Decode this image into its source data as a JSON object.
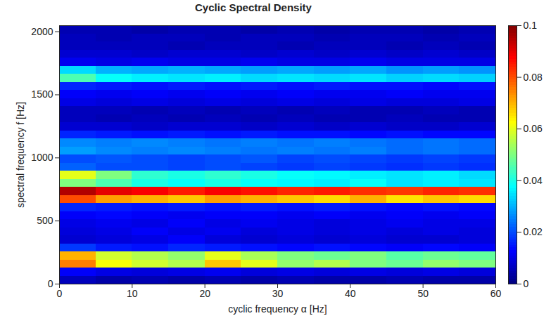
{
  "chart_data": {
    "type": "heatmap",
    "title": "Cyclic Spectral Density",
    "xlabel": "cyclic frequency α [Hz]",
    "ylabel": "spectral frequency f [Hz]",
    "xlim": [
      0,
      60
    ],
    "xticks": [
      0,
      10,
      20,
      30,
      40,
      50,
      60
    ],
    "ylim": [
      0,
      2048
    ],
    "yticks": [
      0,
      500,
      1000,
      1500,
      2000
    ],
    "xbins": [
      0,
      5,
      10,
      15,
      20,
      25,
      30,
      35,
      40,
      45,
      50,
      55,
      60
    ],
    "ybins": [
      0,
      64,
      128,
      192,
      256,
      320,
      384,
      448,
      512,
      576,
      640,
      704,
      768,
      832,
      896,
      960,
      1024,
      1088,
      1152,
      1216,
      1280,
      1344,
      1408,
      1472,
      1536,
      1600,
      1664,
      1728,
      1792,
      1856,
      1920,
      1984,
      2048
    ],
    "values": [
      [
        0.006,
        0.004,
        0.005,
        0.004,
        0.005,
        0.004,
        0.005,
        0.004,
        0.004,
        0.005,
        0.004,
        0.004
      ],
      [
        0.012,
        0.01,
        0.009,
        0.01,
        0.011,
        0.009,
        0.01,
        0.009,
        0.01,
        0.009,
        0.01,
        0.009
      ],
      [
        0.075,
        0.062,
        0.058,
        0.055,
        0.068,
        0.06,
        0.052,
        0.055,
        0.05,
        0.048,
        0.052,
        0.05
      ],
      [
        0.07,
        0.058,
        0.055,
        0.052,
        0.06,
        0.054,
        0.05,
        0.048,
        0.05,
        0.046,
        0.048,
        0.047
      ],
      [
        0.018,
        0.015,
        0.014,
        0.016,
        0.015,
        0.014,
        0.013,
        0.014,
        0.013,
        0.012,
        0.013,
        0.012
      ],
      [
        0.008,
        0.009,
        0.01,
        0.012,
        0.009,
        0.008,
        0.009,
        0.008,
        0.009,
        0.008,
        0.008,
        0.009
      ],
      [
        0.009,
        0.01,
        0.012,
        0.01,
        0.011,
        0.009,
        0.01,
        0.009,
        0.01,
        0.009,
        0.01,
        0.009
      ],
      [
        0.01,
        0.011,
        0.01,
        0.012,
        0.01,
        0.011,
        0.01,
        0.009,
        0.01,
        0.011,
        0.01,
        0.01
      ],
      [
        0.012,
        0.013,
        0.012,
        0.011,
        0.012,
        0.012,
        0.011,
        0.012,
        0.011,
        0.012,
        0.011,
        0.012
      ],
      [
        0.016,
        0.015,
        0.014,
        0.015,
        0.014,
        0.015,
        0.014,
        0.015,
        0.014,
        0.013,
        0.014,
        0.013
      ],
      [
        0.08,
        0.072,
        0.07,
        0.068,
        0.072,
        0.07,
        0.068,
        0.066,
        0.07,
        0.065,
        0.068,
        0.066
      ],
      [
        0.095,
        0.09,
        0.088,
        0.085,
        0.088,
        0.086,
        0.084,
        0.085,
        0.083,
        0.082,
        0.084,
        0.083
      ],
      [
        0.05,
        0.045,
        0.04,
        0.038,
        0.04,
        0.038,
        0.037,
        0.036,
        0.038,
        0.035,
        0.036,
        0.035
      ],
      [
        0.06,
        0.05,
        0.042,
        0.04,
        0.042,
        0.04,
        0.038,
        0.037,
        0.036,
        0.035,
        0.036,
        0.034
      ],
      [
        0.022,
        0.02,
        0.02,
        0.019,
        0.02,
        0.019,
        0.018,
        0.019,
        0.018,
        0.017,
        0.018,
        0.017
      ],
      [
        0.02,
        0.021,
        0.02,
        0.019,
        0.02,
        0.021,
        0.019,
        0.02,
        0.019,
        0.018,
        0.019,
        0.018
      ],
      [
        0.028,
        0.026,
        0.025,
        0.026,
        0.025,
        0.024,
        0.025,
        0.024,
        0.025,
        0.023,
        0.024,
        0.023
      ],
      [
        0.026,
        0.025,
        0.026,
        0.025,
        0.024,
        0.025,
        0.024,
        0.025,
        0.024,
        0.023,
        0.024,
        0.023
      ],
      [
        0.016,
        0.015,
        0.014,
        0.015,
        0.014,
        0.015,
        0.014,
        0.014,
        0.013,
        0.014,
        0.013,
        0.013
      ],
      [
        0.008,
        0.008,
        0.007,
        0.008,
        0.008,
        0.007,
        0.008,
        0.007,
        0.008,
        0.007,
        0.007,
        0.008
      ],
      [
        0.006,
        0.005,
        0.006,
        0.005,
        0.006,
        0.005,
        0.006,
        0.005,
        0.005,
        0.006,
        0.005,
        0.005
      ],
      [
        0.006,
        0.006,
        0.005,
        0.006,
        0.005,
        0.006,
        0.005,
        0.006,
        0.005,
        0.005,
        0.006,
        0.005
      ],
      [
        0.01,
        0.009,
        0.01,
        0.009,
        0.01,
        0.009,
        0.01,
        0.009,
        0.01,
        0.009,
        0.009,
        0.01
      ],
      [
        0.012,
        0.011,
        0.012,
        0.011,
        0.012,
        0.011,
        0.012,
        0.011,
        0.011,
        0.012,
        0.011,
        0.011
      ],
      [
        0.016,
        0.015,
        0.014,
        0.015,
        0.014,
        0.015,
        0.014,
        0.015,
        0.014,
        0.014,
        0.013,
        0.014
      ],
      [
        0.045,
        0.038,
        0.036,
        0.035,
        0.036,
        0.034,
        0.035,
        0.034,
        0.035,
        0.033,
        0.034,
        0.033
      ],
      [
        0.034,
        0.03,
        0.029,
        0.03,
        0.029,
        0.028,
        0.029,
        0.028,
        0.029,
        0.027,
        0.028,
        0.027
      ],
      [
        0.011,
        0.01,
        0.011,
        0.01,
        0.01,
        0.011,
        0.01,
        0.01,
        0.011,
        0.01,
        0.01,
        0.01
      ],
      [
        0.008,
        0.008,
        0.007,
        0.008,
        0.008,
        0.007,
        0.008,
        0.007,
        0.008,
        0.007,
        0.008,
        0.007
      ],
      [
        0.006,
        0.006,
        0.006,
        0.005,
        0.006,
        0.006,
        0.005,
        0.006,
        0.006,
        0.005,
        0.006,
        0.005
      ],
      [
        0.006,
        0.005,
        0.006,
        0.006,
        0.005,
        0.006,
        0.006,
        0.005,
        0.006,
        0.006,
        0.005,
        0.006
      ],
      [
        0.005,
        0.005,
        0.004,
        0.005,
        0.005,
        0.004,
        0.005,
        0.004,
        0.005,
        0.005,
        0.004,
        0.005
      ]
    ],
    "colorbar": {
      "lim": [
        0,
        0.1
      ],
      "ticks": [
        0,
        0.02,
        0.04,
        0.06,
        0.08,
        0.1
      ]
    },
    "grid": false
  }
}
